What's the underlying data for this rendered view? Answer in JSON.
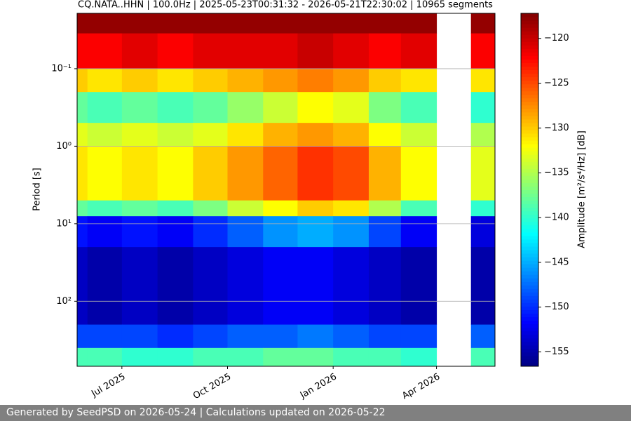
{
  "chart_data": {
    "type": "spectrogram",
    "title": "CQ.NATA..HHN | 100.0Hz | 2025-05-23T00:31:32 - 2026-05-21T22:30:02 | 10965 segments",
    "y_label": "Period [s]",
    "colorbar_label": "Amplitude [m²/s⁴/Hz] [dB]",
    "x": [
      "2025-05",
      "2025-06",
      "2025-07",
      "2025-08",
      "2025-09",
      "2025-10",
      "2025-11",
      "2025-12",
      "2026-01",
      "2026-02",
      "2026-03",
      "2026-04",
      "2026-05"
    ],
    "xlim": [
      "2025-05-23T00:31:32",
      "2026-05-21T22:30:02"
    ],
    "xticks": [
      {
        "value": "2025-07",
        "label": "Jul 2025"
      },
      {
        "value": "2025-10",
        "label": "Oct 2025"
      },
      {
        "value": "2026-01",
        "label": "Jan 2026"
      },
      {
        "value": "2026-04",
        "label": "Apr 2026"
      }
    ],
    "bins": [
      0.0193,
      0.035,
      0.1,
      0.2,
      0.5,
      1,
      5,
      8,
      20,
      200,
      400,
      690
    ],
    "ylim": [
      0.0193,
      690
    ],
    "y_log": true,
    "y_inverted": true,
    "yticks": [
      {
        "value": 0.1,
        "label": "10⁻¹"
      },
      {
        "value": 1,
        "label": "10⁰"
      },
      {
        "value": 10,
        "label": "10¹"
      },
      {
        "value": 100,
        "label": "10²"
      }
    ],
    "grid": true,
    "z": [
      [
        -118,
        -118,
        -118,
        -118,
        -118,
        -118,
        -118,
        -118,
        -118,
        -118,
        -118,
        null,
        -118
      ],
      [
        -122,
        -122,
        -121,
        -122,
        -121,
        -121,
        -121,
        -120,
        -121,
        -122,
        -121,
        null,
        -122
      ],
      [
        -130,
        -131,
        -130,
        -131,
        -130,
        -129,
        -128,
        -127,
        -128,
        -130,
        -131,
        null,
        -131
      ],
      [
        -138,
        -139,
        -138,
        -139,
        -138,
        -136,
        -134,
        -132,
        -133,
        -137,
        -139,
        null,
        -140
      ],
      [
        -133,
        -134,
        -133,
        -134,
        -133,
        -131,
        -129,
        -128,
        -129,
        -132,
        -134,
        null,
        -135
      ],
      [
        -131,
        -132,
        -131,
        -132,
        -130,
        -128,
        -126,
        -124,
        -125,
        -129,
        -132,
        null,
        -133
      ],
      [
        -138,
        -139,
        -138,
        -139,
        -137,
        -134,
        -132,
        -130,
        -131,
        -135,
        -139,
        null,
        -140
      ],
      [
        -151,
        -152,
        -151,
        -152,
        -150,
        -148,
        -146,
        -145,
        -146,
        -149,
        -152,
        null,
        -153
      ],
      [
        -154,
        -155,
        -154,
        -155,
        -154,
        -153,
        -152,
        -152,
        -153,
        -154,
        -155,
        null,
        -155
      ],
      [
        -149,
        -149,
        -149,
        -150,
        -149,
        -148,
        -148,
        -147,
        -148,
        -149,
        -149,
        null,
        -148
      ],
      [
        -139,
        -139,
        -140,
        -140,
        -139,
        -139,
        -138,
        -138,
        -139,
        -139,
        -140,
        null,
        -139
      ]
    ],
    "clim": [
      -156.6,
      -117.2
    ],
    "colormap": "jet",
    "colorbar_ticks": [
      {
        "value": -120,
        "label": "−120"
      },
      {
        "value": -125,
        "label": "−125"
      },
      {
        "value": -130,
        "label": "−130"
      },
      {
        "value": -135,
        "label": "−135"
      },
      {
        "value": -140,
        "label": "−140"
      },
      {
        "value": -145,
        "label": "−145"
      },
      {
        "value": -150,
        "label": "−150"
      },
      {
        "value": -155,
        "label": "−155"
      }
    ]
  },
  "footer": "Generated by SeedPSD on 2026-05-24 | Calculations updated on 2026-05-22"
}
